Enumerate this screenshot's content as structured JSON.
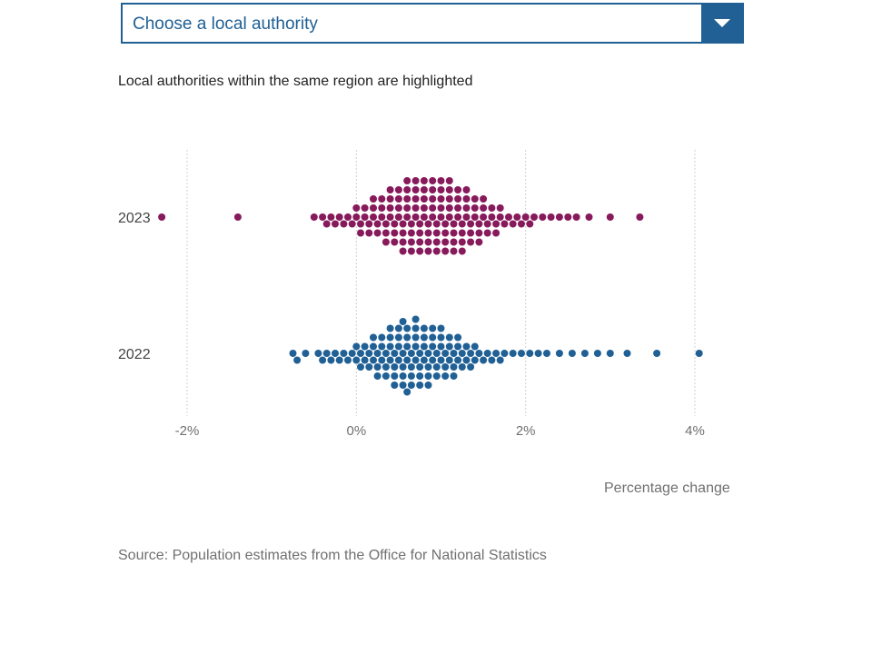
{
  "selector": {
    "placeholder": "Choose a local authority"
  },
  "subtitle": "Local authorities within the same region are highlighted",
  "source": "Source: Population estimates from the Office for National Statistics",
  "colors": {
    "accent": "#206095",
    "series_2023": "#871a5b",
    "series_2022": "#206095",
    "grid": "#d0d0d0"
  },
  "chart_data": {
    "type": "scatter",
    "subtype": "beeswarm",
    "categories": [
      "2023",
      "2022"
    ],
    "xlabel": "Percentage change",
    "xlim": [
      -2.8,
      4.8
    ],
    "xticks": [
      -2,
      0,
      2,
      4
    ],
    "xtick_labels": [
      "-2%",
      "0%",
      "2%",
      "4%"
    ],
    "grid": "vertical-dashed",
    "series": [
      {
        "category": "2023",
        "color": "#871a5b",
        "values": [
          -2.3,
          -1.4,
          -0.5,
          -0.4,
          -0.35,
          -0.3,
          -0.25,
          -0.2,
          -0.15,
          -0.1,
          -0.05,
          0.0,
          0.0,
          0.05,
          0.05,
          0.1,
          0.1,
          0.15,
          0.15,
          0.2,
          0.2,
          0.2,
          0.25,
          0.25,
          0.3,
          0.3,
          0.3,
          0.35,
          0.35,
          0.35,
          0.4,
          0.4,
          0.4,
          0.4,
          0.45,
          0.45,
          0.45,
          0.5,
          0.5,
          0.5,
          0.5,
          0.55,
          0.55,
          0.55,
          0.55,
          0.6,
          0.6,
          0.6,
          0.6,
          0.6,
          0.65,
          0.65,
          0.65,
          0.65,
          0.7,
          0.7,
          0.7,
          0.7,
          0.7,
          0.75,
          0.75,
          0.75,
          0.75,
          0.8,
          0.8,
          0.8,
          0.8,
          0.8,
          0.85,
          0.85,
          0.85,
          0.85,
          0.9,
          0.9,
          0.9,
          0.9,
          0.9,
          0.95,
          0.95,
          0.95,
          0.95,
          1.0,
          1.0,
          1.0,
          1.0,
          1.0,
          1.05,
          1.05,
          1.05,
          1.05,
          1.1,
          1.1,
          1.1,
          1.1,
          1.1,
          1.15,
          1.15,
          1.15,
          1.15,
          1.2,
          1.2,
          1.2,
          1.2,
          1.25,
          1.25,
          1.25,
          1.25,
          1.3,
          1.3,
          1.3,
          1.3,
          1.35,
          1.35,
          1.35,
          1.4,
          1.4,
          1.4,
          1.45,
          1.45,
          1.45,
          1.5,
          1.5,
          1.5,
          1.55,
          1.55,
          1.6,
          1.6,
          1.65,
          1.65,
          1.7,
          1.7,
          1.75,
          1.8,
          1.85,
          1.9,
          1.95,
          2.0,
          2.05,
          2.1,
          2.2,
          2.3,
          2.4,
          2.5,
          2.6,
          2.75,
          3.0,
          3.35
        ]
      },
      {
        "category": "2022",
        "color": "#206095",
        "values": [
          -0.75,
          -0.7,
          -0.6,
          -0.45,
          -0.4,
          -0.35,
          -0.3,
          -0.25,
          -0.2,
          -0.15,
          -0.1,
          -0.05,
          0.0,
          0.0,
          0.05,
          0.05,
          0.1,
          0.1,
          0.15,
          0.15,
          0.2,
          0.2,
          0.2,
          0.25,
          0.25,
          0.25,
          0.3,
          0.3,
          0.3,
          0.35,
          0.35,
          0.35,
          0.4,
          0.4,
          0.4,
          0.4,
          0.45,
          0.45,
          0.45,
          0.45,
          0.5,
          0.5,
          0.5,
          0.5,
          0.55,
          0.55,
          0.55,
          0.55,
          0.55,
          0.6,
          0.6,
          0.6,
          0.6,
          0.6,
          0.65,
          0.65,
          0.65,
          0.65,
          0.7,
          0.7,
          0.7,
          0.7,
          0.7,
          0.75,
          0.75,
          0.75,
          0.75,
          0.8,
          0.8,
          0.8,
          0.8,
          0.85,
          0.85,
          0.85,
          0.85,
          0.9,
          0.9,
          0.9,
          0.9,
          0.95,
          0.95,
          0.95,
          1.0,
          1.0,
          1.0,
          1.0,
          1.05,
          1.05,
          1.05,
          1.1,
          1.1,
          1.1,
          1.15,
          1.15,
          1.15,
          1.2,
          1.2,
          1.2,
          1.25,
          1.25,
          1.3,
          1.3,
          1.35,
          1.35,
          1.4,
          1.4,
          1.45,
          1.5,
          1.55,
          1.6,
          1.65,
          1.7,
          1.75,
          1.85,
          1.95,
          2.05,
          2.15,
          2.25,
          2.4,
          2.55,
          2.7,
          2.85,
          3.0,
          3.2,
          3.55,
          4.05
        ]
      }
    ]
  }
}
